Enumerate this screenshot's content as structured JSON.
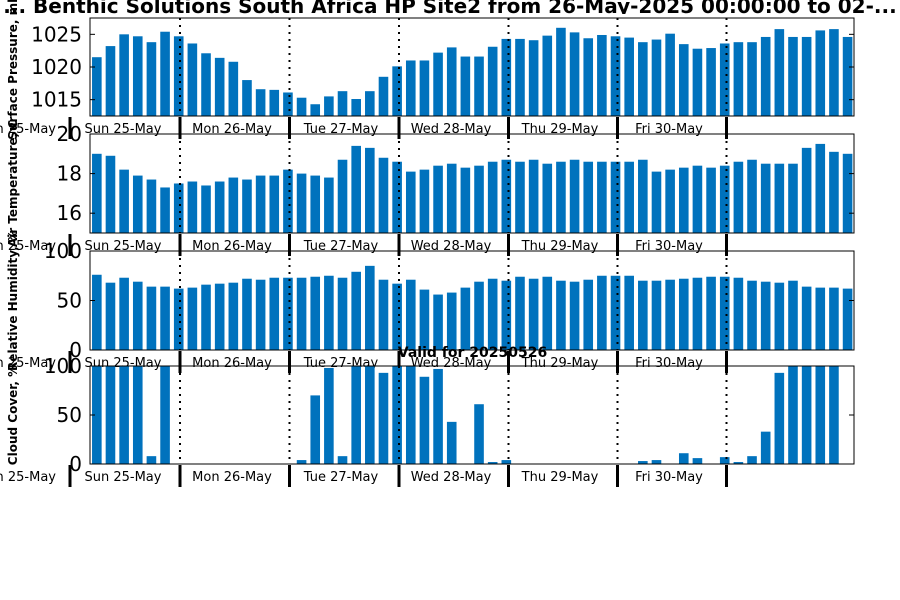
{
  "title": "... Benthic Solutions South Africa HP Site2 from 26-May-2025 00:00:00 to 02-...",
  "valid_label": "Valid for 20250526",
  "date_labels": [
    "Sun 25-May",
    "Mon 26-May",
    "Tue 27-May",
    "Wed 28-May",
    "Thu 29-May",
    "Fri 30-May"
  ],
  "date_label_left_partial": "n 25-May",
  "chart_data": [
    {
      "type": "bar",
      "ylabel": "Surface Pressure, mb",
      "ylim": [
        1012.5,
        1027.5
      ],
      "yticks": [
        1015,
        1020,
        1025
      ],
      "values": [
        1021.5,
        1023.2,
        1025.0,
        1024.7,
        1023.8,
        1025.4,
        1024.7,
        1023.6,
        1022.1,
        1021.4,
        1020.8,
        1018.0,
        1016.6,
        1016.5,
        1016.1,
        1015.3,
        1014.3,
        1015.5,
        1016.3,
        1015.1,
        1016.3,
        1018.5,
        1020.1,
        1021.0,
        1021.0,
        1022.2,
        1023.0,
        1021.6,
        1021.6,
        1023.1,
        1024.3,
        1024.3,
        1024.1,
        1024.8,
        1026.0,
        1025.3,
        1024.4,
        1024.9,
        1024.7,
        1024.5,
        1023.8,
        1024.2,
        1025.1,
        1023.5,
        1022.8,
        1022.9,
        1023.6,
        1023.8,
        1023.8,
        1024.6,
        1025.8,
        1024.6,
        1024.6,
        1025.6,
        1025.8,
        1024.6
      ]
    },
    {
      "type": "bar",
      "ylabel": "Air Temperature, C",
      "ylim": [
        15.0,
        20.0
      ],
      "yticks": [
        16,
        18,
        20
      ],
      "values": [
        19.0,
        18.9,
        18.2,
        17.9,
        17.7,
        17.3,
        17.5,
        17.6,
        17.4,
        17.6,
        17.8,
        17.7,
        17.9,
        17.9,
        18.2,
        18.0,
        17.9,
        17.8,
        18.7,
        19.4,
        19.3,
        18.8,
        18.6,
        18.1,
        18.2,
        18.4,
        18.5,
        18.3,
        18.4,
        18.6,
        18.7,
        18.6,
        18.7,
        18.5,
        18.6,
        18.7,
        18.6,
        18.6,
        18.6,
        18.6,
        18.7,
        18.1,
        18.2,
        18.3,
        18.4,
        18.3,
        18.4,
        18.6,
        18.7,
        18.5,
        18.5,
        18.5,
        19.3,
        19.5,
        19.1,
        19.0
      ]
    },
    {
      "type": "bar",
      "ylabel": "Relative Humidity, %",
      "ylim": [
        0,
        100
      ],
      "yticks": [
        0,
        50,
        100
      ],
      "values": [
        76,
        68,
        73,
        69,
        64,
        64,
        62,
        63,
        66,
        67,
        68,
        72,
        71,
        73,
        73,
        73,
        74,
        75,
        73,
        79,
        85,
        71,
        67,
        71,
        61,
        56,
        58,
        63,
        69,
        72,
        70,
        74,
        72,
        74,
        70,
        69,
        71,
        75,
        75,
        75,
        70,
        70,
        71,
        72,
        73,
        74,
        74,
        73,
        70,
        69,
        68,
        70,
        64,
        63,
        63,
        62
      ]
    },
    {
      "type": "bar",
      "ylabel": "Cloud Cover, %",
      "ylim": [
        0,
        100
      ],
      "yticks": [
        0,
        50,
        100
      ],
      "values": [
        100,
        100,
        100,
        100,
        8,
        100,
        0,
        0,
        0,
        0,
        0,
        0,
        0,
        0,
        0,
        4,
        70,
        98,
        8,
        100,
        100,
        93,
        100,
        100,
        89,
        97,
        43,
        0,
        61,
        2,
        4,
        0,
        0,
        0,
        0,
        0,
        0,
        0,
        0,
        0,
        3,
        4,
        0,
        11,
        6,
        0,
        7,
        2,
        8,
        33,
        93,
        100,
        100,
        100,
        100,
        0
      ]
    }
  ]
}
